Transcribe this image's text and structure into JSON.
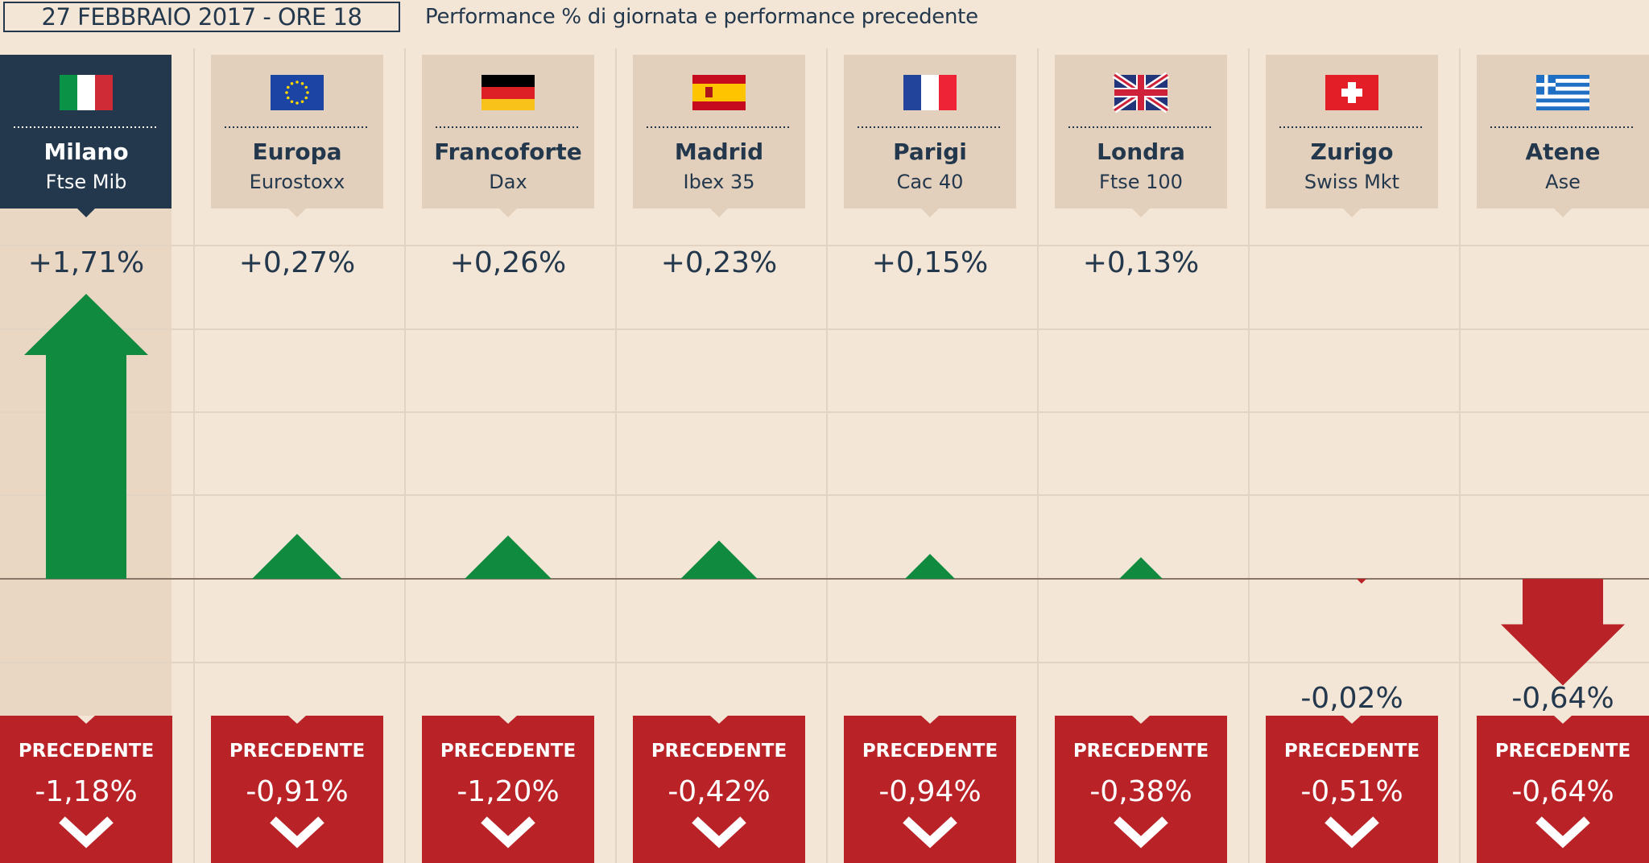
{
  "header": {
    "date_label": "27 FEBBRAIO 2017 - ORE 18",
    "subtitle": "Performance % di giornata e performance precedente"
  },
  "labels": {
    "previous": "PRECEDENTE"
  },
  "colors": {
    "background": "#f4e6d6",
    "highlight_column": "#ead7c3",
    "card": "#e2cfbc",
    "highlight_card": "#23384d",
    "text": "#23384d",
    "gain": "#0f8a3f",
    "loss": "#b92227",
    "grid": "#e3d3c2",
    "baseline": "#8a7666"
  },
  "chart_data": {
    "type": "bar",
    "categories": [
      "Milano",
      "Europa",
      "Francoforte",
      "Madrid",
      "Parigi",
      "Londra",
      "Zurigo",
      "Atene"
    ],
    "subcategories": [
      "Ftse Mib",
      "Eurostoxx",
      "Dax",
      "Ibex 35",
      "Cac 40",
      "Ftse 100",
      "Swiss Mkt",
      "Ase"
    ],
    "flags": [
      "flag-italy-icon",
      "flag-eu-icon",
      "flag-germany-icon",
      "flag-spain-icon",
      "flag-france-icon",
      "flag-uk-icon",
      "flag-switzerland-icon",
      "flag-greece-icon"
    ],
    "series": [
      {
        "values": [
          1.71,
          0.27,
          0.26,
          0.23,
          0.15,
          0.13,
          -0.02,
          -0.64
        ],
        "value_labels": [
          "+1,71%",
          "+0,27%",
          "+0,26%",
          "+0,23%",
          "+0,15%",
          "+0,13%",
          "-0,02%",
          "-0,64%"
        ]
      },
      {
        "name": "PRECEDENTE",
        "values": [
          -1.18,
          -0.91,
          -1.2,
          -0.42,
          -0.94,
          -0.38,
          -0.51,
          -0.64
        ],
        "value_labels": [
          "-1,18%",
          "-0,91%",
          "-1,20%",
          "-0,42%",
          "-0,94%",
          "-0,38%",
          "-0,51%",
          "-0,64%"
        ]
      }
    ],
    "highlighted_category": "Milano",
    "grid": true
  }
}
